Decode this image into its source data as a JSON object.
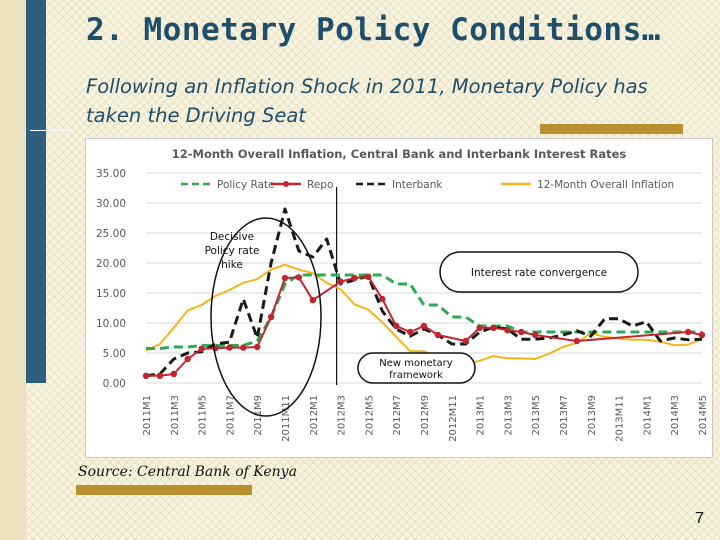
{
  "slide": {
    "title": "2. Monetary Policy Conditions…",
    "subtitle": "Following an Inflation Shock in 2011, Monetary Policy has taken the Driving Seat",
    "source": "Source: Central Bank of Kenya",
    "page_number": "7"
  },
  "chart_data": {
    "type": "line",
    "title": "12-Month Overall Inflation, Central Bank and Interbank Interest Rates",
    "xlabel": "",
    "ylabel": "",
    "ylim": [
      0,
      35
    ],
    "yticks": [
      "0.00",
      "5.00",
      "10.00",
      "15.00",
      "20.00",
      "25.00",
      "30.00",
      "35.00"
    ],
    "grid": "horizontal",
    "legend_position": "top",
    "categories": [
      "2011M1",
      "2011M2",
      "2011M3",
      "2011M4",
      "2011M5",
      "2011M6",
      "2011M7",
      "2011M8",
      "2011M9",
      "2011M10",
      "2011M11",
      "2011M12",
      "2012M1",
      "2012M2",
      "2012M3",
      "2012M4",
      "2012M5",
      "2012M6",
      "2012M7",
      "2012M8",
      "2012M9",
      "2012M10",
      "2012M11",
      "2012M12",
      "2013M1",
      "2013M2",
      "2013M3",
      "2013M4",
      "2013M5",
      "2013M6",
      "2013M7",
      "2013M8",
      "2013M9",
      "2013M10",
      "2013M11",
      "2013M12",
      "2014M1",
      "2014M2",
      "2014M3",
      "2014M4",
      "2014M5"
    ],
    "tick_labels": [
      "2011M1",
      "2011M3",
      "2011M5",
      "2011M7",
      "2011M9",
      "2011M11",
      "2012M1",
      "2012M3",
      "2012M5",
      "2012M7",
      "2012M9",
      "2012M11",
      "2013M1",
      "2013M3",
      "2013M5",
      "2013M7",
      "2013M9",
      "2013M11",
      "2014M1",
      "2014M3",
      "2014M5"
    ],
    "series": [
      {
        "name": "Policy Rate",
        "color": "#2eaa57",
        "style": "dashed",
        "values": [
          5.75,
          5.75,
          6.0,
          6.0,
          6.25,
          6.25,
          6.25,
          6.25,
          7.0,
          11.0,
          16.5,
          18.0,
          18.0,
          18.0,
          18.0,
          18.0,
          18.0,
          18.0,
          16.5,
          16.5,
          13.0,
          13.0,
          11.0,
          11.0,
          9.5,
          9.5,
          9.5,
          8.5,
          8.5,
          8.5,
          8.5,
          8.5,
          8.5,
          8.5,
          8.5,
          8.5,
          8.5,
          8.5,
          8.5,
          8.5,
          8.5
        ]
      },
      {
        "name": "Repo",
        "color": "#c0262d",
        "style": "solid-markers",
        "values": [
          1.2,
          1.2,
          1.5,
          4.0,
          5.7,
          5.8,
          5.9,
          5.9,
          6.0,
          11.0,
          17.5,
          17.6,
          13.8,
          null,
          16.9,
          17.5,
          17.7,
          14.0,
          9.5,
          8.5,
          9.5,
          8.0,
          null,
          7.0,
          9.2,
          9.2,
          8.8,
          8.5,
          8.0,
          null,
          null,
          7.0,
          null,
          null,
          null,
          null,
          null,
          null,
          null,
          8.5,
          8.0
        ]
      },
      {
        "name": "Interbank",
        "color": "#1a1a1a",
        "style": "dashed",
        "values": [
          1.2,
          1.5,
          4.0,
          5.0,
          5.2,
          6.5,
          6.8,
          14.0,
          7.5,
          20.0,
          29.0,
          22.0,
          21.0,
          24.0,
          16.5,
          17.2,
          17.8,
          12.0,
          9.0,
          7.8,
          9.0,
          8.0,
          6.5,
          6.5,
          8.5,
          9.3,
          9.0,
          7.3,
          7.3,
          7.5,
          8.0,
          8.7,
          7.8,
          10.7,
          10.7,
          9.5,
          10.2,
          7.0,
          7.5,
          7.2,
          7.3
        ]
      },
      {
        "name": "12-Month Overall Inflation",
        "color": "#f2b51c",
        "style": "solid",
        "values": [
          5.4,
          6.5,
          9.2,
          12.1,
          13.0,
          14.5,
          15.5,
          16.7,
          17.3,
          18.9,
          19.7,
          18.9,
          18.3,
          16.7,
          15.6,
          13.1,
          12.2,
          10.1,
          7.7,
          5.3,
          5.3,
          4.1,
          3.3,
          3.2,
          3.7,
          4.5,
          4.1,
          4.1,
          4.0,
          4.9,
          6.0,
          6.7,
          8.3,
          7.7,
          7.4,
          7.2,
          7.2,
          6.9,
          6.3,
          6.4,
          7.3
        ]
      }
    ],
    "annotations": [
      {
        "text": "Decisive Policy rate hike"
      },
      {
        "text": "Interest rate convergence"
      },
      {
        "text": "New monetary framework"
      }
    ]
  }
}
